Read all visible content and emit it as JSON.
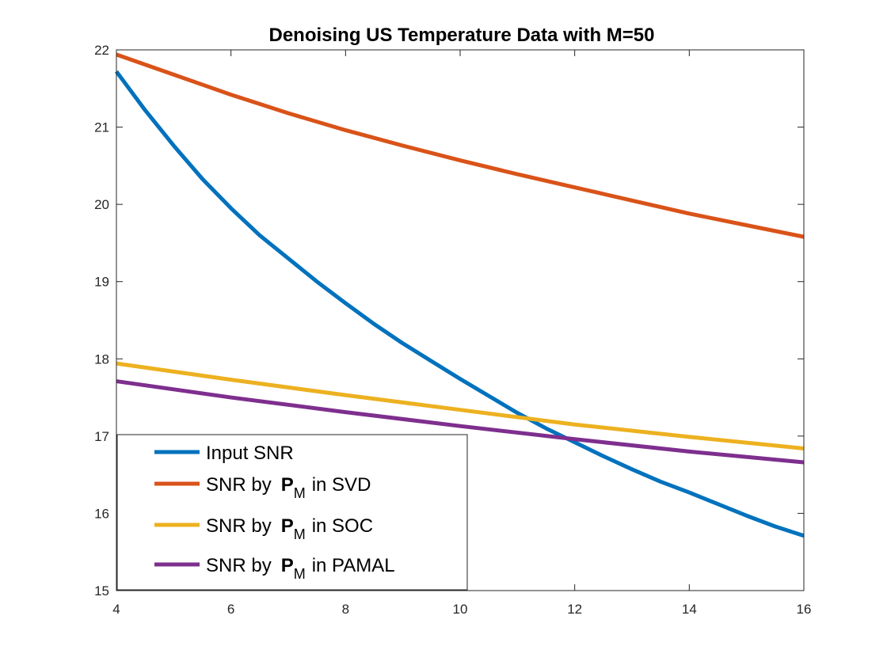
{
  "chart_data": {
    "type": "line",
    "title": "Denoising US Temperature Data with M=50",
    "xlabel": "",
    "ylabel": "",
    "xlim": [
      4,
      16
    ],
    "ylim": [
      15,
      22
    ],
    "xticks": [
      "4",
      "6",
      "8",
      "10",
      "12",
      "14",
      "16"
    ],
    "yticks": [
      "15",
      "16",
      "17",
      "18",
      "19",
      "20",
      "21",
      "22"
    ],
    "grid": false,
    "legend_position": "bottom-left",
    "series": [
      {
        "name": "Input SNR",
        "label_prefix": "Input SNR",
        "color": "#0072BD",
        "x": [
          4,
          4.5,
          5,
          5.5,
          6,
          6.5,
          7,
          7.5,
          8,
          8.5,
          9,
          9.5,
          10,
          10.5,
          11,
          11.5,
          12,
          12.5,
          13,
          13.5,
          14,
          14.5,
          15,
          15.5,
          16
        ],
        "y": [
          21.72,
          21.22,
          20.76,
          20.33,
          19.95,
          19.6,
          19.3,
          19.0,
          18.72,
          18.45,
          18.2,
          17.97,
          17.74,
          17.52,
          17.3,
          17.1,
          16.92,
          16.74,
          16.57,
          16.41,
          16.27,
          16.12,
          15.97,
          15.83,
          15.71
        ]
      },
      {
        "name": "SNR by PM in SVD",
        "label_prefix": "SNR by",
        "label_symbol": "P",
        "label_subscript": "M",
        "label_suffix": "in SVD",
        "color": "#D95319",
        "x": [
          4,
          5,
          6,
          7,
          8,
          9,
          10,
          11,
          12,
          13,
          14,
          15,
          16
        ],
        "y": [
          21.94,
          21.68,
          21.42,
          21.18,
          20.96,
          20.76,
          20.57,
          20.39,
          20.22,
          20.05,
          19.88,
          19.73,
          19.58
        ]
      },
      {
        "name": "SNR by PM in SOC",
        "label_prefix": "SNR by",
        "label_symbol": "P",
        "label_subscript": "M",
        "label_suffix": "in SOC",
        "color": "#EDB120",
        "x": [
          4,
          6,
          8,
          10,
          12,
          14,
          16
        ],
        "y": [
          17.94,
          17.73,
          17.53,
          17.34,
          17.15,
          16.99,
          16.84
        ]
      },
      {
        "name": "SNR by PM in PAMAL",
        "label_prefix": "SNR by",
        "label_symbol": "P",
        "label_subscript": "M",
        "label_suffix": "in PAMAL",
        "color": "#7E2F8E",
        "x": [
          4,
          6,
          8,
          10,
          12,
          14,
          16
        ],
        "y": [
          17.71,
          17.5,
          17.31,
          17.13,
          16.96,
          16.8,
          16.66
        ]
      }
    ]
  }
}
